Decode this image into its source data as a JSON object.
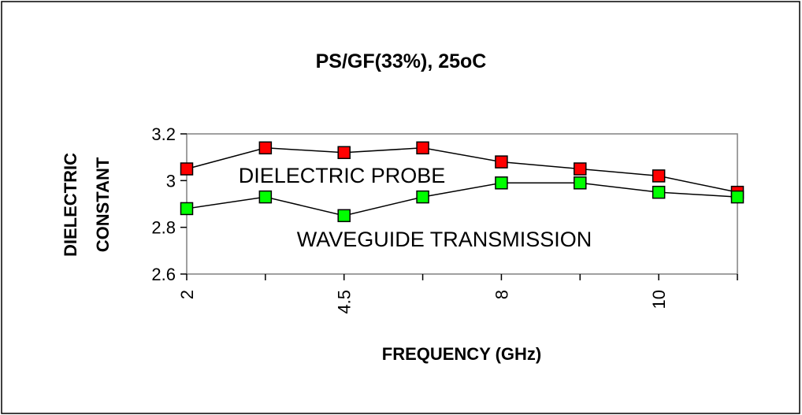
{
  "chart_data": {
    "type": "line",
    "title": "PS/GF(33%), 25oC",
    "xlabel": "FREQUENCY (GHz)",
    "ylabel_lines": [
      "DIELECTRIC",
      "CONSTANT"
    ],
    "ylim": [
      2.6,
      3.2
    ],
    "yticks": [
      "2.6",
      "2.8",
      "3",
      "3.2"
    ],
    "categories": [
      "2",
      "",
      "4.5",
      "",
      "8",
      "",
      "10",
      ""
    ],
    "grid": false,
    "series": [
      {
        "color": "#ff0000",
        "marker": "square",
        "values": [
          3.05,
          3.14,
          3.12,
          3.14,
          3.08,
          3.05,
          3.02,
          2.95
        ]
      },
      {
        "color": "#00ff00",
        "marker": "square",
        "values": [
          2.88,
          2.93,
          2.85,
          2.93,
          2.99,
          2.99,
          2.95,
          2.93
        ]
      }
    ],
    "annotations": [
      "DIELECTRIC PROBE",
      "WAVEGUIDE TRANSMISSION"
    ]
  }
}
